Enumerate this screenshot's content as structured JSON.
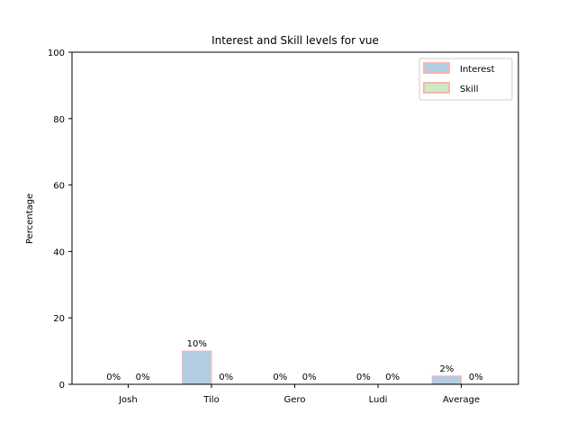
{
  "chart_data": {
    "type": "bar",
    "title": "Interest and Skill levels for vue",
    "xlabel": "",
    "ylabel": "Percentage",
    "ylim": [
      0,
      100
    ],
    "yticks": [
      0,
      20,
      40,
      60,
      80,
      100
    ],
    "categories": [
      "Josh",
      "Tilo",
      "Gero",
      "Ludi",
      "Average"
    ],
    "series": [
      {
        "name": "Interest",
        "values": [
          0,
          10,
          0,
          0,
          2.5
        ],
        "labels": [
          "0%",
          "10%",
          "0%",
          "0%",
          "2%"
        ],
        "color": "#b3cde3",
        "edge_color": "#fbb4ae"
      },
      {
        "name": "Skill",
        "values": [
          0,
          0,
          0,
          0,
          0
        ],
        "labels": [
          "0%",
          "0%",
          "0%",
          "0%",
          "0%"
        ],
        "color": "#ccebc5",
        "edge_color": "#fbb4ae"
      }
    ],
    "legend": "top-right",
    "grid": false
  }
}
